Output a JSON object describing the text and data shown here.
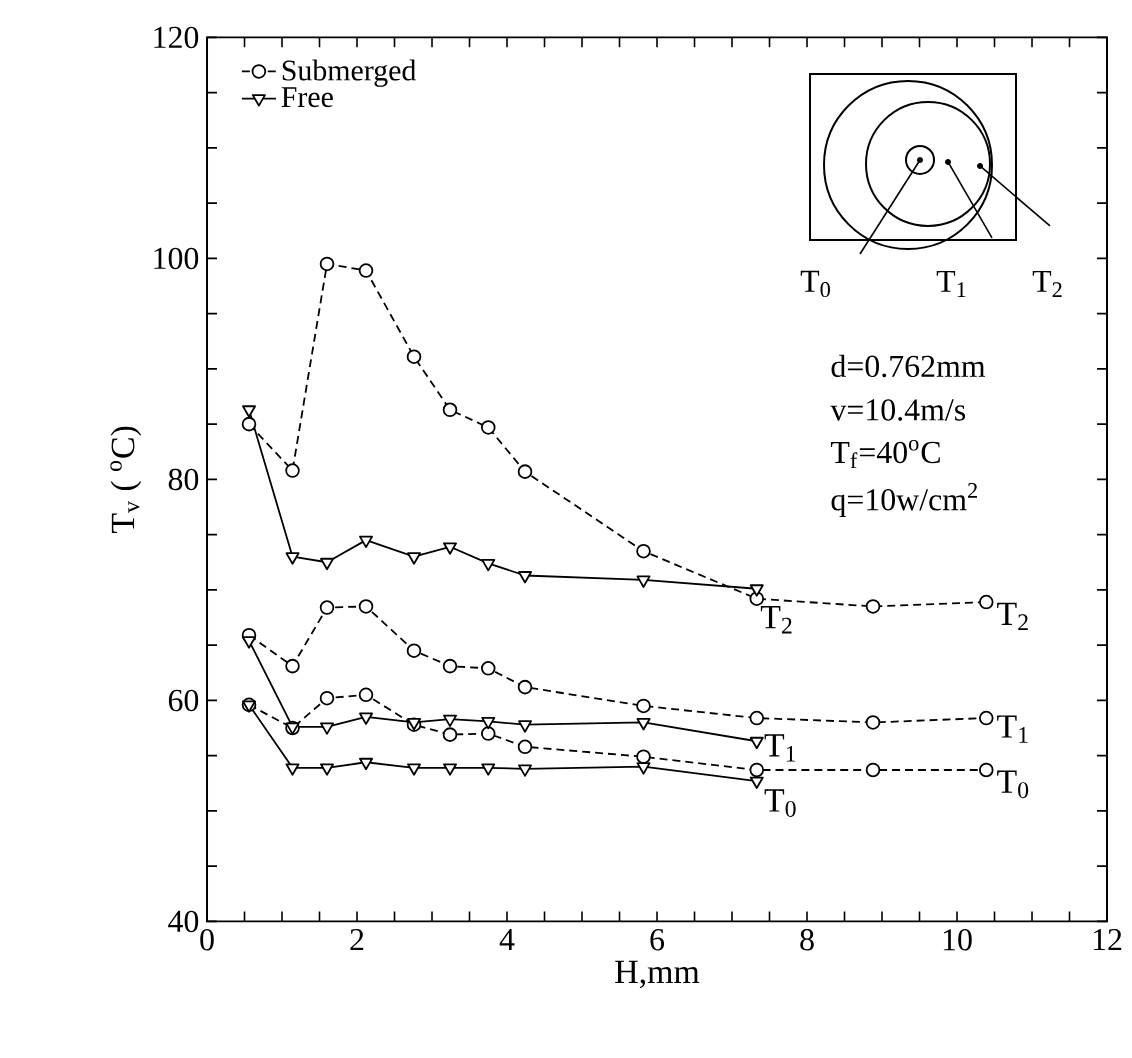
{
  "chart_data": {
    "type": "line",
    "xlabel": "H,mm",
    "ylabel": "T$_{v}$ ( $^{o}$C)",
    "xlim": [
      0,
      12
    ],
    "ylim": [
      40,
      120
    ],
    "xticks": [
      0,
      {
        "value": 0.5,
        "label": null
      },
      {
        "value": 1,
        "label": null
      },
      {
        "value": 1.5,
        "label": null
      },
      2,
      {
        "value": 2.5,
        "label": null
      },
      {
        "value": 3,
        "label": null
      },
      {
        "value": 3.5,
        "label": null
      },
      4,
      {
        "value": 4.5,
        "label": null
      },
      {
        "value": 5,
        "label": null
      },
      {
        "value": 5.5,
        "label": null
      },
      6,
      {
        "value": 6.5,
        "label": null
      },
      {
        "value": 7,
        "label": null
      },
      {
        "value": 7.5,
        "label": null
      },
      8,
      {
        "value": 8.5,
        "label": null
      },
      {
        "value": 9,
        "label": null
      },
      {
        "value": 9.5,
        "label": null
      },
      10,
      {
        "value": 10.5,
        "label": null
      },
      {
        "value": 11,
        "label": null
      },
      {
        "value": 11.5,
        "label": null
      },
      12
    ],
    "yticks": [
      40,
      {
        "value": 45,
        "label": null
      },
      {
        "value": 50,
        "label": null
      },
      {
        "value": 55,
        "label": null
      },
      60,
      {
        "value": 65,
        "label": null
      },
      {
        "value": 70,
        "label": null
      },
      {
        "value": 75,
        "label": null
      },
      80,
      {
        "value": 85,
        "label": null
      },
      {
        "value": 90,
        "label": null
      },
      {
        "value": 95,
        "label": null
      },
      100,
      {
        "value": 105,
        "label": null
      },
      {
        "value": 110,
        "label": null
      },
      {
        "value": 115,
        "label": null
      },
      120
    ],
    "legend": "top left",
    "series": [
      {
        "name": "Submerged",
        "color": "#000000",
        "marker": "circle",
        "line_style": "dashed",
        "x": [
          0.56,
          1.14,
          1.6,
          2.12,
          2.76,
          3.24,
          3.75,
          4.24,
          5.82,
          7.33,
          8.88,
          10.39
        ],
        "values": [
          85.0,
          80.8,
          99.5,
          98.9,
          91.1,
          86.3,
          84.7,
          80.7,
          73.5,
          69.2,
          68.5,
          68.9
        ]
      },
      {
        "color": "#000000",
        "marker": "circle",
        "line_style": "dashed",
        "x": [
          0.56,
          1.14,
          1.6,
          2.12,
          2.76,
          3.24,
          3.75,
          4.24,
          5.82,
          7.33,
          8.88,
          10.39
        ],
        "values": [
          65.9,
          63.1,
          68.4,
          68.5,
          64.5,
          63.1,
          62.9,
          61.2,
          59.5,
          58.4,
          58.0,
          58.4
        ]
      },
      {
        "color": "#000000",
        "marker": "circle",
        "line_style": "dashed",
        "x": [
          0.56,
          1.14,
          1.6,
          2.12,
          2.76,
          3.24,
          3.75,
          4.24,
          5.82,
          7.33,
          8.88,
          10.39
        ],
        "values": [
          59.6,
          57.5,
          60.2,
          60.5,
          57.8,
          56.9,
          57.0,
          55.8,
          54.9,
          53.7,
          53.7,
          53.7
        ]
      },
      {
        "name": "Free",
        "color": "#000000",
        "marker": "triangle",
        "line_style": "solid",
        "x": [
          0.56,
          1.14,
          1.6,
          2.12,
          2.76,
          3.24,
          3.75,
          4.24,
          5.82,
          7.33
        ],
        "values": [
          86.3,
          73.0,
          72.5,
          74.5,
          73.0,
          73.9,
          72.4,
          71.3,
          70.9,
          70.1
        ]
      },
      {
        "color": "#000000",
        "marker": "triangle",
        "line_style": "solid",
        "x": [
          0.56,
          1.14,
          1.6,
          2.12,
          2.76,
          3.24,
          3.75,
          4.24,
          5.82,
          7.33
        ],
        "values": [
          65.4,
          57.6,
          57.6,
          58.5,
          58.0,
          58.3,
          58.1,
          57.8,
          58.0,
          56.3
        ]
      },
      {
        "color": "#000000",
        "marker": "triangle",
        "line_style": "solid",
        "x": [
          0.56,
          1.14,
          1.6,
          2.12,
          2.76,
          3.24,
          3.75,
          4.24,
          5.82,
          7.33
        ],
        "values": [
          59.6,
          53.9,
          53.9,
          54.4,
          53.9,
          53.9,
          53.9,
          53.8,
          54.0,
          52.7
        ]
      }
    ],
    "annotations": [
      {
        "text": "T$_{2}$",
        "x": 7.6,
        "y": 67.3
      },
      {
        "text": "T$_{2}$",
        "x": 10.75,
        "y": 67.6
      },
      {
        "text": "T$_{1}$",
        "x": 10.75,
        "y": 57.4
      },
      {
        "text": "T$_{1}$",
        "x": 7.65,
        "y": 55.7
      },
      {
        "text": "T$_{0}$",
        "x": 10.75,
        "y": 52.4
      },
      {
        "text": "T$_{0}$",
        "x": 7.65,
        "y": 50.7
      },
      "T$_{0}$",
      "T$_{1}$",
      "T$_{2}$",
      "d=0.762mm",
      "v=10.4m/s",
      "T$_{f}$=40$^{o}$C",
      "q=10w/cm$^{2}$"
    ]
  }
}
